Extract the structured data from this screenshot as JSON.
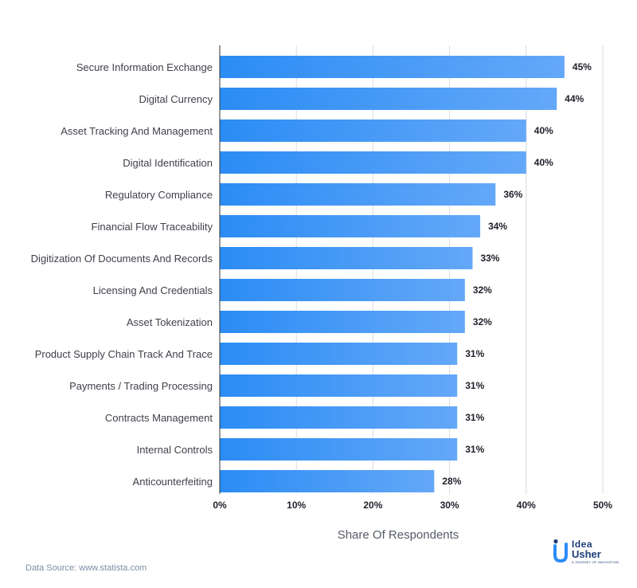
{
  "chart_data": {
    "type": "bar",
    "orientation": "horizontal",
    "categories": [
      "Secure Information Exchange",
      "Digital Currency",
      "Asset Tracking And Management",
      "Digital Identification",
      "Regulatory Compliance",
      "Financial Flow Traceability",
      "Digitization Of Documents And Records",
      "Licensing And Credentials",
      "Asset Tokenization",
      "Product Supply Chain Track And Trace",
      "Payments / Trading Processing",
      "Contracts Management",
      "Internal Controls",
      "Anticounterfeiting"
    ],
    "values": [
      45,
      44,
      40,
      40,
      36,
      34,
      33,
      32,
      32,
      31,
      31,
      31,
      31,
      28
    ],
    "value_labels": [
      "45%",
      "44%",
      "40%",
      "40%",
      "36%",
      "34%",
      "33%",
      "32%",
      "32%",
      "31%",
      "31%",
      "31%",
      "31%",
      "28%"
    ],
    "xlim": [
      0,
      50
    ],
    "xticks": [
      0,
      10,
      20,
      30,
      40,
      50
    ],
    "xtick_labels": [
      "0%",
      "10%",
      "20%",
      "30%",
      "40%",
      "50%"
    ],
    "xlabel": "Share Of Respondents",
    "grid": true,
    "bar_color_start": "#2b8cf5",
    "bar_color_end": "#64a8f8"
  },
  "footer": {
    "source": "Data Source: www.statista.com"
  },
  "logo": {
    "line1": "Idea",
    "line2": "Usher",
    "tagline": "A JOURNEY OF INNOVATION"
  }
}
